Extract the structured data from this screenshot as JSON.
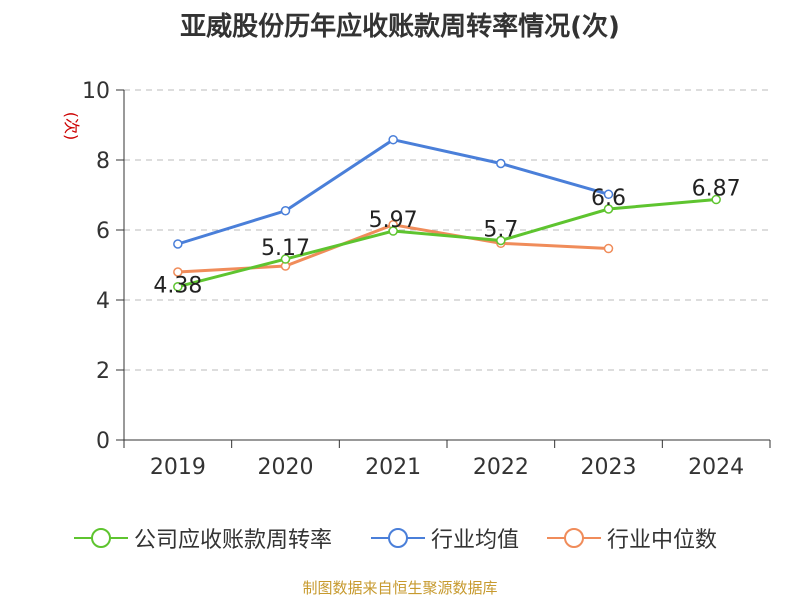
{
  "title": "亚威股份历年应收账款周转率情况(次)",
  "source": "制图数据来自恒生聚源数据库",
  "colors": {
    "company": "#5ec42f",
    "industry_avg": "#4a7fd9",
    "industry_median": "#f08c5a",
    "grid": "#bbbbbb",
    "axis": "#333333",
    "unit": "#cc0000"
  },
  "chart_data": {
    "type": "line",
    "title": "亚威股份历年应收账款周转率情况(次)",
    "ylabel": "(次)",
    "xlabel": "",
    "ylim": [
      0,
      10
    ],
    "yticks": [
      0,
      2,
      4,
      6,
      8,
      10
    ],
    "grid": true,
    "legend_position": "bottom",
    "categories": [
      "2019",
      "2020",
      "2021",
      "2022",
      "2023",
      "2024"
    ],
    "series": [
      {
        "name": "公司应收账款周转率",
        "values": [
          4.38,
          5.17,
          5.97,
          5.7,
          6.6,
          6.87
        ],
        "labels": [
          "4.38",
          "5.17",
          "5.97",
          "5.7",
          "6.6",
          "6.87"
        ]
      },
      {
        "name": "行业均值",
        "values": [
          5.6,
          6.55,
          8.58,
          7.9,
          7.02,
          null
        ]
      },
      {
        "name": "行业中位数",
        "values": [
          4.8,
          4.97,
          6.15,
          5.62,
          5.47,
          null
        ]
      }
    ]
  },
  "legend": [
    {
      "label": "公司应收账款周转率",
      "color_key": "company"
    },
    {
      "label": "行业均值",
      "color_key": "industry_avg"
    },
    {
      "label": "行业中位数",
      "color_key": "industry_median"
    }
  ]
}
